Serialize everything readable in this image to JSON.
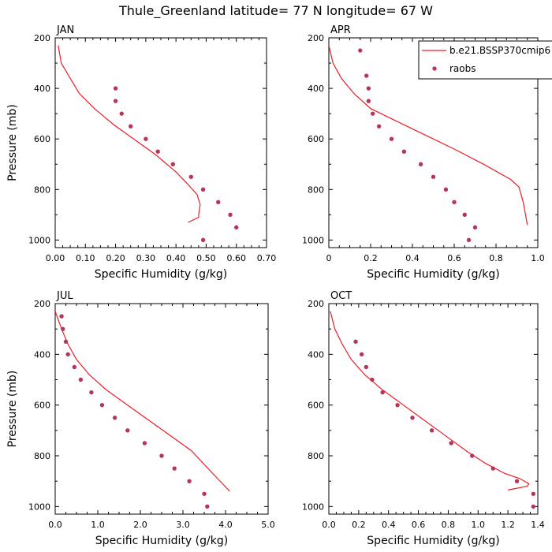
{
  "figure": {
    "title": "Thule_Greenland  latitude= 77 N longitude= 67 W"
  },
  "colors": {
    "model_line": "#ee1c25",
    "raobs_marker": "#b5365a",
    "axis": "#000000"
  },
  "legend": {
    "placement": "top-right of APR panel",
    "entries": [
      {
        "label": "b.e21.BSSP370cmip6",
        "style": "line"
      },
      {
        "label": "raobs",
        "style": "marker"
      }
    ]
  },
  "chart_data": [
    {
      "type": "line",
      "panel": "JAN",
      "title": "JAN",
      "xlabel": "Specific Humidity (g/kg)",
      "ylabel": "Pressure (mb)",
      "xlim": [
        0,
        0.7
      ],
      "ylim": [
        200,
        1030
      ],
      "y_reversed": true,
      "xticks": [
        "0.00",
        "0.10",
        "0.20",
        "0.30",
        "0.40",
        "0.50",
        "0.60",
        "0.70"
      ],
      "yticks": [
        "200",
        "400",
        "600",
        "800",
        "1000"
      ],
      "series": [
        {
          "name": "b.e21.BSSP370cmip6",
          "kind": "line",
          "x": [
            0.01,
            0.02,
            0.05,
            0.08,
            0.13,
            0.19,
            0.26,
            0.33,
            0.4,
            0.44,
            0.47,
            0.48,
            0.475,
            0.475,
            0.44
          ],
          "y": [
            230,
            300,
            360,
            420,
            480,
            540,
            600,
            660,
            730,
            780,
            820,
            860,
            900,
            910,
            930
          ]
        },
        {
          "name": "raobs",
          "kind": "scatter",
          "x": [
            0.2,
            0.2,
            0.22,
            0.25,
            0.3,
            0.34,
            0.39,
            0.45,
            0.49,
            0.54,
            0.58,
            0.6,
            0.49
          ],
          "y": [
            400,
            450,
            500,
            550,
            600,
            650,
            700,
            750,
            800,
            850,
            900,
            950,
            1000
          ]
        }
      ]
    },
    {
      "type": "line",
      "panel": "APR",
      "title": "APR",
      "xlabel": "Specific Humidity (g/kg)",
      "ylabel": "",
      "xlim": [
        0,
        1.0
      ],
      "ylim": [
        200,
        1030
      ],
      "y_reversed": true,
      "xticks": [
        "0",
        "0.2",
        "0.4",
        "0.6",
        "0.8",
        "1.0"
      ],
      "yticks": [
        "200",
        "400",
        "600",
        "800",
        "1000"
      ],
      "series": [
        {
          "name": "b.e21.BSSP370cmip6",
          "kind": "line",
          "x": [
            0.0,
            0.02,
            0.06,
            0.12,
            0.2,
            0.3,
            0.45,
            0.6,
            0.74,
            0.87,
            0.91,
            0.93,
            0.95
          ],
          "y": [
            230,
            300,
            360,
            420,
            480,
            520,
            580,
            640,
            700,
            760,
            790,
            850,
            940
          ]
        },
        {
          "name": "raobs",
          "kind": "scatter",
          "x": [
            0.15,
            0.18,
            0.19,
            0.19,
            0.21,
            0.24,
            0.3,
            0.36,
            0.44,
            0.5,
            0.56,
            0.6,
            0.65,
            0.7,
            0.67
          ],
          "y": [
            250,
            350,
            400,
            450,
            500,
            550,
            600,
            650,
            700,
            750,
            800,
            850,
            900,
            950,
            1000
          ]
        }
      ]
    },
    {
      "type": "line",
      "panel": "JUL",
      "title": "JUL",
      "xlabel": "Specific Humidity (g/kg)",
      "ylabel": "Pressure (mb)",
      "xlim": [
        0,
        5.0
      ],
      "ylim": [
        200,
        1030
      ],
      "y_reversed": true,
      "xticks": [
        "0.0",
        "1.0",
        "2.0",
        "3.0",
        "4.0",
        "5.0"
      ],
      "yticks": [
        "200",
        "400",
        "600",
        "800",
        "1000"
      ],
      "series": [
        {
          "name": "b.e21.BSSP370cmip6",
          "kind": "line",
          "x": [
            0.0,
            0.15,
            0.3,
            0.5,
            0.8,
            1.2,
            1.7,
            2.2,
            2.7,
            3.2,
            3.7,
            4.1
          ],
          "y": [
            230,
            300,
            360,
            420,
            480,
            540,
            600,
            660,
            720,
            780,
            870,
            940
          ]
        },
        {
          "name": "raobs",
          "kind": "scatter",
          "x": [
            0.15,
            0.18,
            0.25,
            0.3,
            0.45,
            0.6,
            0.85,
            1.1,
            1.4,
            1.7,
            2.1,
            2.5,
            2.8,
            3.15,
            3.5,
            3.57
          ],
          "y": [
            250,
            300,
            350,
            400,
            450,
            500,
            550,
            600,
            650,
            700,
            750,
            800,
            850,
            900,
            950,
            1000
          ]
        }
      ]
    },
    {
      "type": "line",
      "panel": "OCT",
      "title": "OCT",
      "xlabel": "Specific Humidity (g/kg)",
      "ylabel": "",
      "xlim": [
        0,
        1.4
      ],
      "ylim": [
        200,
        1030
      ],
      "y_reversed": true,
      "xticks": [
        "0.0",
        "0.2",
        "0.4",
        "0.6",
        "0.8",
        "1.0",
        "1.2",
        "1.4"
      ],
      "yticks": [
        "200",
        "400",
        "600",
        "800",
        "1000"
      ],
      "series": [
        {
          "name": "b.e21.BSSP370cmip6",
          "kind": "line",
          "x": [
            0.01,
            0.04,
            0.09,
            0.15,
            0.24,
            0.36,
            0.5,
            0.64,
            0.78,
            0.92,
            1.05,
            1.18,
            1.28,
            1.34,
            1.33,
            1.2
          ],
          "y": [
            230,
            300,
            360,
            420,
            480,
            540,
            600,
            660,
            720,
            780,
            830,
            870,
            890,
            910,
            920,
            935
          ]
        },
        {
          "name": "raobs",
          "kind": "scatter",
          "x": [
            0.18,
            0.22,
            0.25,
            0.29,
            0.36,
            0.46,
            0.56,
            0.69,
            0.82,
            0.96,
            1.1,
            1.26,
            1.37,
            1.37
          ],
          "y": [
            350,
            400,
            450,
            500,
            550,
            600,
            650,
            700,
            750,
            800,
            850,
            900,
            950,
            1000
          ]
        }
      ]
    }
  ]
}
